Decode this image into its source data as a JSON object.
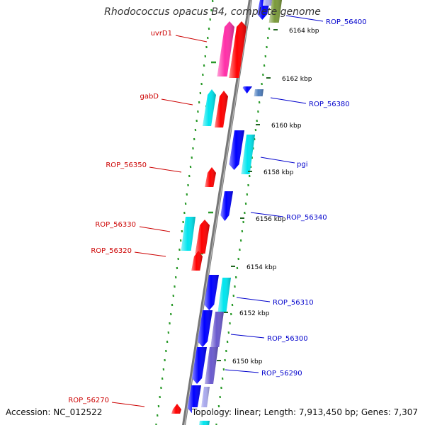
{
  "header": {
    "title": "Rhodococcus opacus B4, complete genome"
  },
  "footer": {
    "accession": "Accession: NC_012522",
    "topology": "Topology: linear; Length: 7,913,450 bp; Genes: 7,307"
  },
  "scale": {
    "unit": "kbp",
    "ticks": [
      {
        "label": "6164 kbp"
      },
      {
        "label": "6162 kbp"
      },
      {
        "label": "6160 kbp"
      },
      {
        "label": "6158 kbp"
      },
      {
        "label": "6156 kbp"
      },
      {
        "label": "6154 kbp"
      },
      {
        "label": "6152 kbp"
      },
      {
        "label": "6150 kbp"
      }
    ]
  },
  "genes_left": [
    {
      "name": "uvrD1"
    },
    {
      "name": "gabD"
    },
    {
      "name": "ROP_56350"
    },
    {
      "name": "ROP_56330"
    },
    {
      "name": "ROP_56320"
    },
    {
      "name": "ROP_56270"
    }
  ],
  "genes_right": [
    {
      "name": "ROP_56400"
    },
    {
      "name": "ROP_56380"
    },
    {
      "name": "pgi"
    },
    {
      "name": "ROP_56340"
    },
    {
      "name": "ROP_56310"
    },
    {
      "name": "ROP_56300"
    },
    {
      "name": "ROP_56290"
    }
  ],
  "colors": {
    "label_left": "#cc0000",
    "label_right": "#0000cc",
    "forward": "#ff0000",
    "reverse": "#0000ff",
    "cyan": "#00e5ee",
    "magenta": "#ff2fa8",
    "violet": "#6a5acd",
    "steel": "#4f7fbf",
    "olive": "#7a9a3a",
    "backbone": "#777777",
    "ring_dots": "#2a9a2a"
  }
}
